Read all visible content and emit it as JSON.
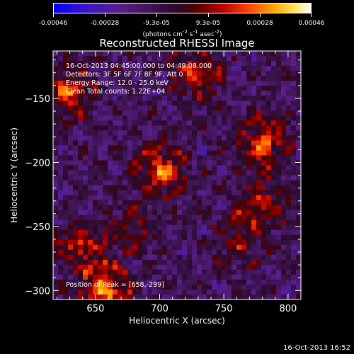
{
  "colorbar": {
    "ticks": [
      "-0.00046",
      "-0.00028",
      "-9.3e-05",
      "9.3e-05",
      "0.00028",
      "0.00046"
    ],
    "units_prefix": "(photons cm",
    "units_exp1": "-2",
    "units_mid": " s",
    "units_exp2": "-1",
    "units_mid2": " asec",
    "units_exp3": "-2",
    "units_suffix": ")"
  },
  "chart_data": {
    "type": "heatmap",
    "title": "Reconstructed RHESSI Image",
    "xlabel": "Heliocentric X (arcsec)",
    "ylabel": "Heliocentric Y (arcsec)",
    "xlim": [
      617,
      810
    ],
    "ylim": [
      -307,
      -113
    ],
    "xticks": [
      "650",
      "700",
      "750",
      "800"
    ],
    "yticks": [
      "-150",
      "-200",
      "-250",
      "-300"
    ],
    "colorbar_range": [
      -0.00046,
      0.00046
    ],
    "peak_position": [
      658,
      -299
    ],
    "hot_spots": [
      {
        "x": 628,
        "y": -145,
        "value": 0.00035
      },
      {
        "x": 700,
        "y": -207,
        "value": 0.0004
      },
      {
        "x": 728,
        "y": -130,
        "value": 0.00032
      },
      {
        "x": 781,
        "y": -185,
        "value": 0.00038
      },
      {
        "x": 779,
        "y": -233,
        "value": 0.0003
      },
      {
        "x": 640,
        "y": -265,
        "value": 0.0003
      },
      {
        "x": 658,
        "y": -299,
        "value": 0.00046
      },
      {
        "x": 760,
        "y": -262,
        "value": 0.0002
      },
      {
        "x": 680,
        "y": -250,
        "value": 0.00018
      }
    ]
  },
  "annotations": {
    "time_range": "16-Oct-2013 04:45:00.000 to 04:49:08.000",
    "detectors": "Detectors: 3F 5F 6F 7F 8F 9F, Att 0",
    "energy": "Energy Range: 12.0 - 25.0 keV",
    "clean": "Clean    Total counts: 1.22E+04",
    "peak": "Position of Peak = [658,-299]"
  },
  "timestamp": "16-Oct-2013 16:52"
}
